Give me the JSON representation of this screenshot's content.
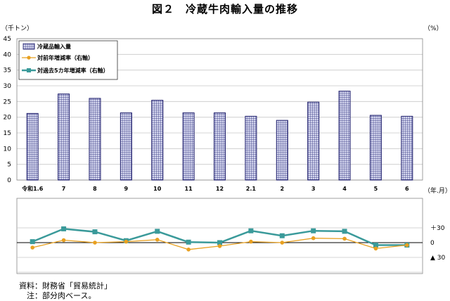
{
  "page_title": "図２　冷蔵牛肉輸入量の推移",
  "y_left_unit": "（千トン）",
  "y_right_unit": "（%）",
  "x_unit": "（年.月）",
  "notes": [
    "資料：財務省「貿易統計」",
    "　注：部分肉ベース。"
  ],
  "chart_data": {
    "type": "bar",
    "title": "図２　冷蔵牛肉輸入量の推移",
    "categories": [
      "令和1.6",
      "7",
      "8",
      "9",
      "10",
      "11",
      "12",
      "2.1",
      "2",
      "3",
      "4",
      "5",
      "6"
    ],
    "ylim": [
      0,
      45
    ],
    "yticks": [
      0,
      5,
      10,
      15,
      20,
      25,
      30,
      35,
      40,
      45
    ],
    "y2ticks": [
      30,
      0,
      -30
    ],
    "y2tick_labels": [
      "＋30",
      "0",
      "▲ 30"
    ],
    "grid": true,
    "legend_position": "top-left",
    "colors": {
      "bar_fill": "#c9cde8",
      "bar_edge": "#1d1d6b",
      "yoy": "#e8a020",
      "five_year": "#3a9a9a"
    },
    "series": [
      {
        "name": "冷蔵品輸入量",
        "type": "bar",
        "values": [
          21.2,
          27.4,
          26.0,
          21.4,
          25.4,
          21.4,
          21.4,
          20.3,
          19.0,
          24.8,
          28.3,
          20.6,
          20.3
        ]
      },
      {
        "name": "対前年増減率（右軸）",
        "type": "line",
        "axis": "right",
        "values": [
          -10,
          5,
          0,
          2,
          6,
          -14,
          -7,
          2,
          0,
          9,
          8,
          -12,
          -5
        ]
      },
      {
        "name": "対過去5カ年増減率（右軸）",
        "type": "line",
        "axis": "right",
        "values": [
          2,
          28,
          22,
          4,
          23,
          1,
          0,
          24,
          14,
          24,
          23,
          -5,
          -5
        ]
      }
    ]
  }
}
